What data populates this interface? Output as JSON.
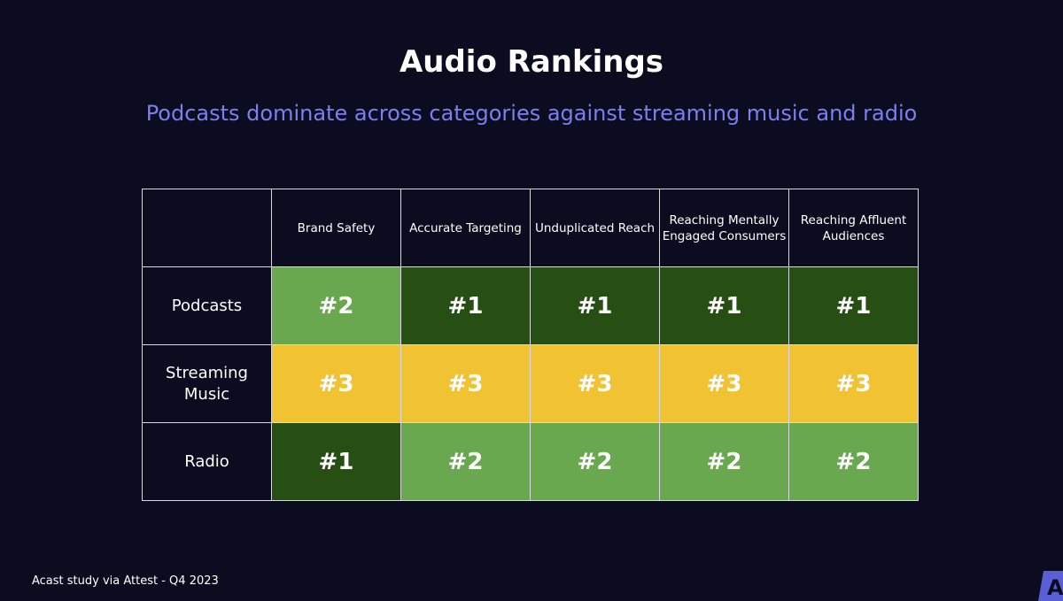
{
  "title": "Audio Rankings",
  "subtitle": "Podcasts dominate across categories against streaming music and radio",
  "table": {
    "columns": [
      "Brand Safety",
      "Accurate Targeting",
      "Unduplicated Reach",
      "Reaching Mentally Engaged Consumers",
      "Reaching Affluent Audiences"
    ],
    "rows": [
      {
        "label": "Podcasts",
        "values": [
          "#2",
          "#1",
          "#1",
          "#1",
          "#1"
        ]
      },
      {
        "label": "Streaming Music",
        "values": [
          "#3",
          "#3",
          "#3",
          "#3",
          "#3"
        ]
      },
      {
        "label": "Radio",
        "values": [
          "#1",
          "#2",
          "#2",
          "#2",
          "#2"
        ]
      }
    ]
  },
  "colors": {
    "rank1": "#274e13",
    "rank2": "#6aa84f",
    "rank3": "#f1c232",
    "background": "#0b0c20",
    "subtitle": "#7b7ff0"
  },
  "footer": "Acast study via Attest - Q4 2023",
  "logo": {
    "letter": "A",
    "icon": "acast-logo-icon"
  }
}
